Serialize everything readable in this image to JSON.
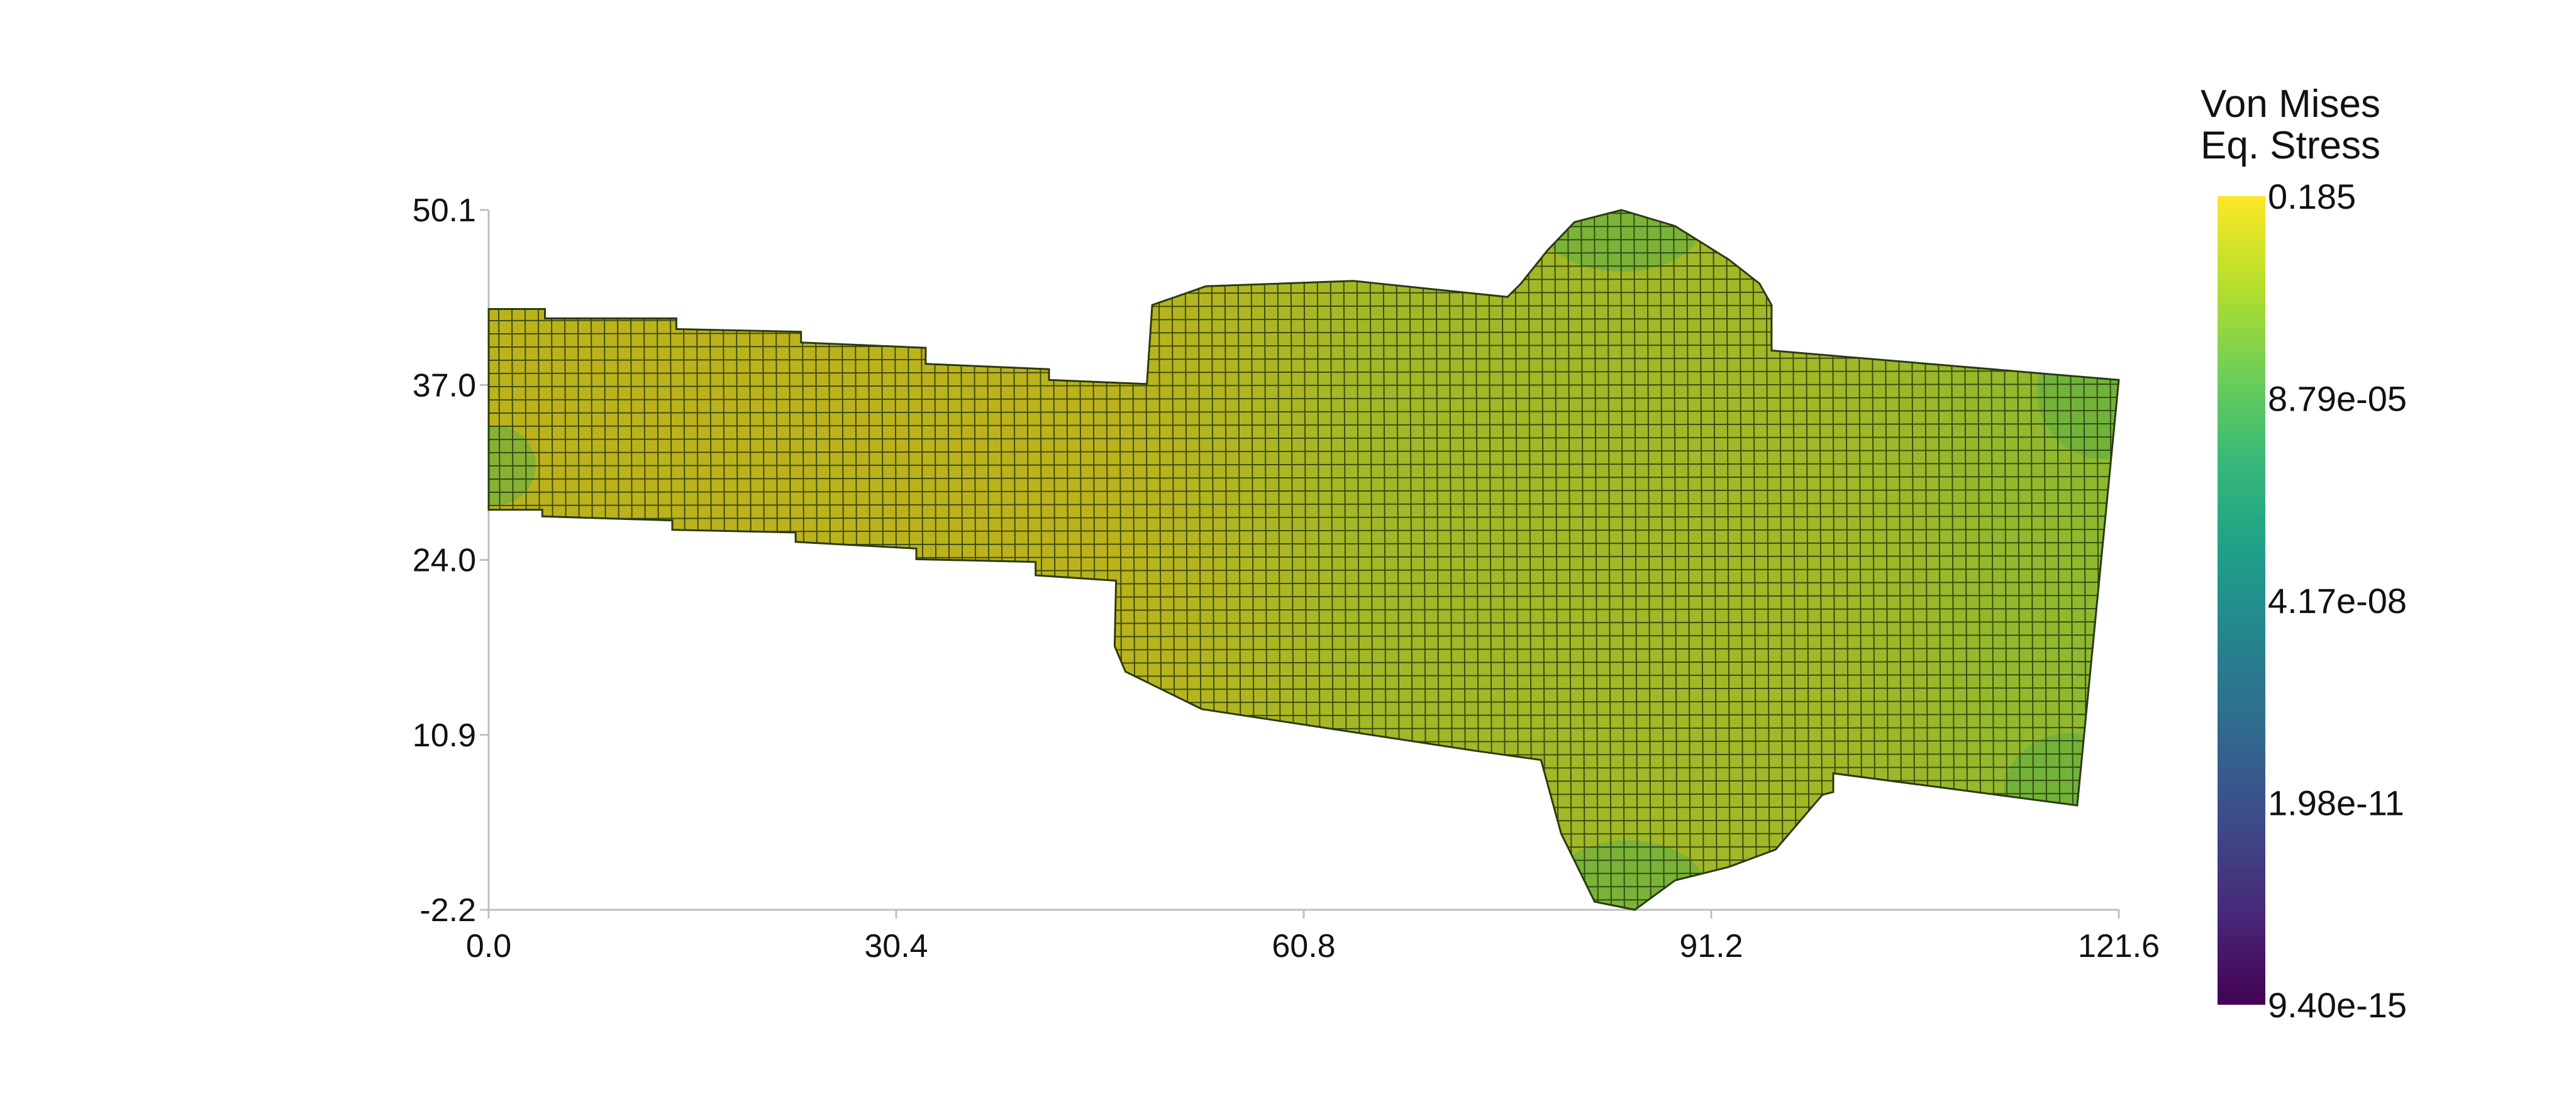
{
  "chart_data": {
    "type": "heatmap",
    "plot_kind": "finite-element mesh contour (deformed)",
    "colormap": "viridis",
    "scale": "log",
    "x_axis": {
      "range": [
        0.0,
        121.6
      ],
      "ticks": [
        "0.0",
        "30.4",
        "60.8",
        "91.2",
        "121.6"
      ]
    },
    "y_axis": {
      "range": [
        -2.2,
        50.1
      ],
      "ticks": [
        "-2.2",
        "10.9",
        "24.0",
        "37.0",
        "50.1"
      ]
    },
    "colorbar": {
      "title_line1": "Von Mises",
      "title_line2": "Eq. Stress",
      "tick_labels": [
        "0.185",
        "8.79e-05",
        "4.17e-08",
        "1.98e-11",
        "9.40e-15"
      ],
      "min": 9.4e-15,
      "max": 0.185,
      "stops": [
        "#fde725",
        "#b5de2b",
        "#6ece58",
        "#35b779",
        "#1f9e89",
        "#26828e",
        "#31688e",
        "#3e4989",
        "#482878",
        "#440154"
      ]
    },
    "colors": {
      "region_left": "#bcb31c",
      "region_mid": "#a2b827",
      "region_right": "#8cb92f",
      "region_edge": "#5aaf45",
      "mesh_line": "#2a3b10",
      "axis": "#bfbfbf"
    },
    "mesh_outline": [
      [
        0.0,
        42.7
      ],
      [
        4.2,
        42.7
      ],
      [
        4.2,
        42.0
      ],
      [
        14.0,
        42.0
      ],
      [
        14.0,
        41.2
      ],
      [
        23.3,
        41.0
      ],
      [
        23.3,
        40.2
      ],
      [
        32.6,
        39.8
      ],
      [
        32.6,
        38.6
      ],
      [
        41.8,
        38.2
      ],
      [
        41.8,
        37.4
      ],
      [
        49.1,
        37.1
      ],
      [
        49.5,
        43.0
      ],
      [
        53.5,
        44.4
      ],
      [
        64.5,
        44.8
      ],
      [
        76.0,
        43.6
      ],
      [
        77.0,
        44.6
      ],
      [
        79.0,
        47.1
      ],
      [
        81.0,
        49.2
      ],
      [
        84.5,
        50.1
      ],
      [
        88.5,
        48.9
      ],
      [
        92.5,
        46.4
      ],
      [
        94.8,
        44.6
      ],
      [
        95.7,
        43.0
      ],
      [
        95.7,
        39.6
      ],
      [
        121.6,
        37.4
      ],
      [
        118.5,
        5.6
      ],
      [
        100.3,
        8.0
      ],
      [
        100.3,
        6.6
      ],
      [
        99.5,
        6.4
      ],
      [
        96.0,
        2.3
      ],
      [
        92.5,
        1.0
      ],
      [
        88.5,
        0.0
      ],
      [
        85.5,
        -2.2
      ],
      [
        82.5,
        -1.6
      ],
      [
        80.0,
        3.5
      ],
      [
        78.5,
        9.0
      ],
      [
        73.5,
        9.7
      ],
      [
        53.2,
        12.8
      ],
      [
        47.5,
        15.6
      ],
      [
        46.7,
        17.5
      ],
      [
        46.8,
        22.4
      ],
      [
        40.8,
        22.8
      ],
      [
        40.8,
        23.8
      ],
      [
        31.9,
        24.0
      ],
      [
        31.9,
        24.8
      ],
      [
        22.9,
        25.3
      ],
      [
        22.9,
        26.0
      ],
      [
        13.7,
        26.2
      ],
      [
        13.7,
        26.9
      ],
      [
        4.0,
        27.2
      ],
      [
        4.0,
        27.7
      ],
      [
        0.0,
        27.7
      ]
    ]
  }
}
